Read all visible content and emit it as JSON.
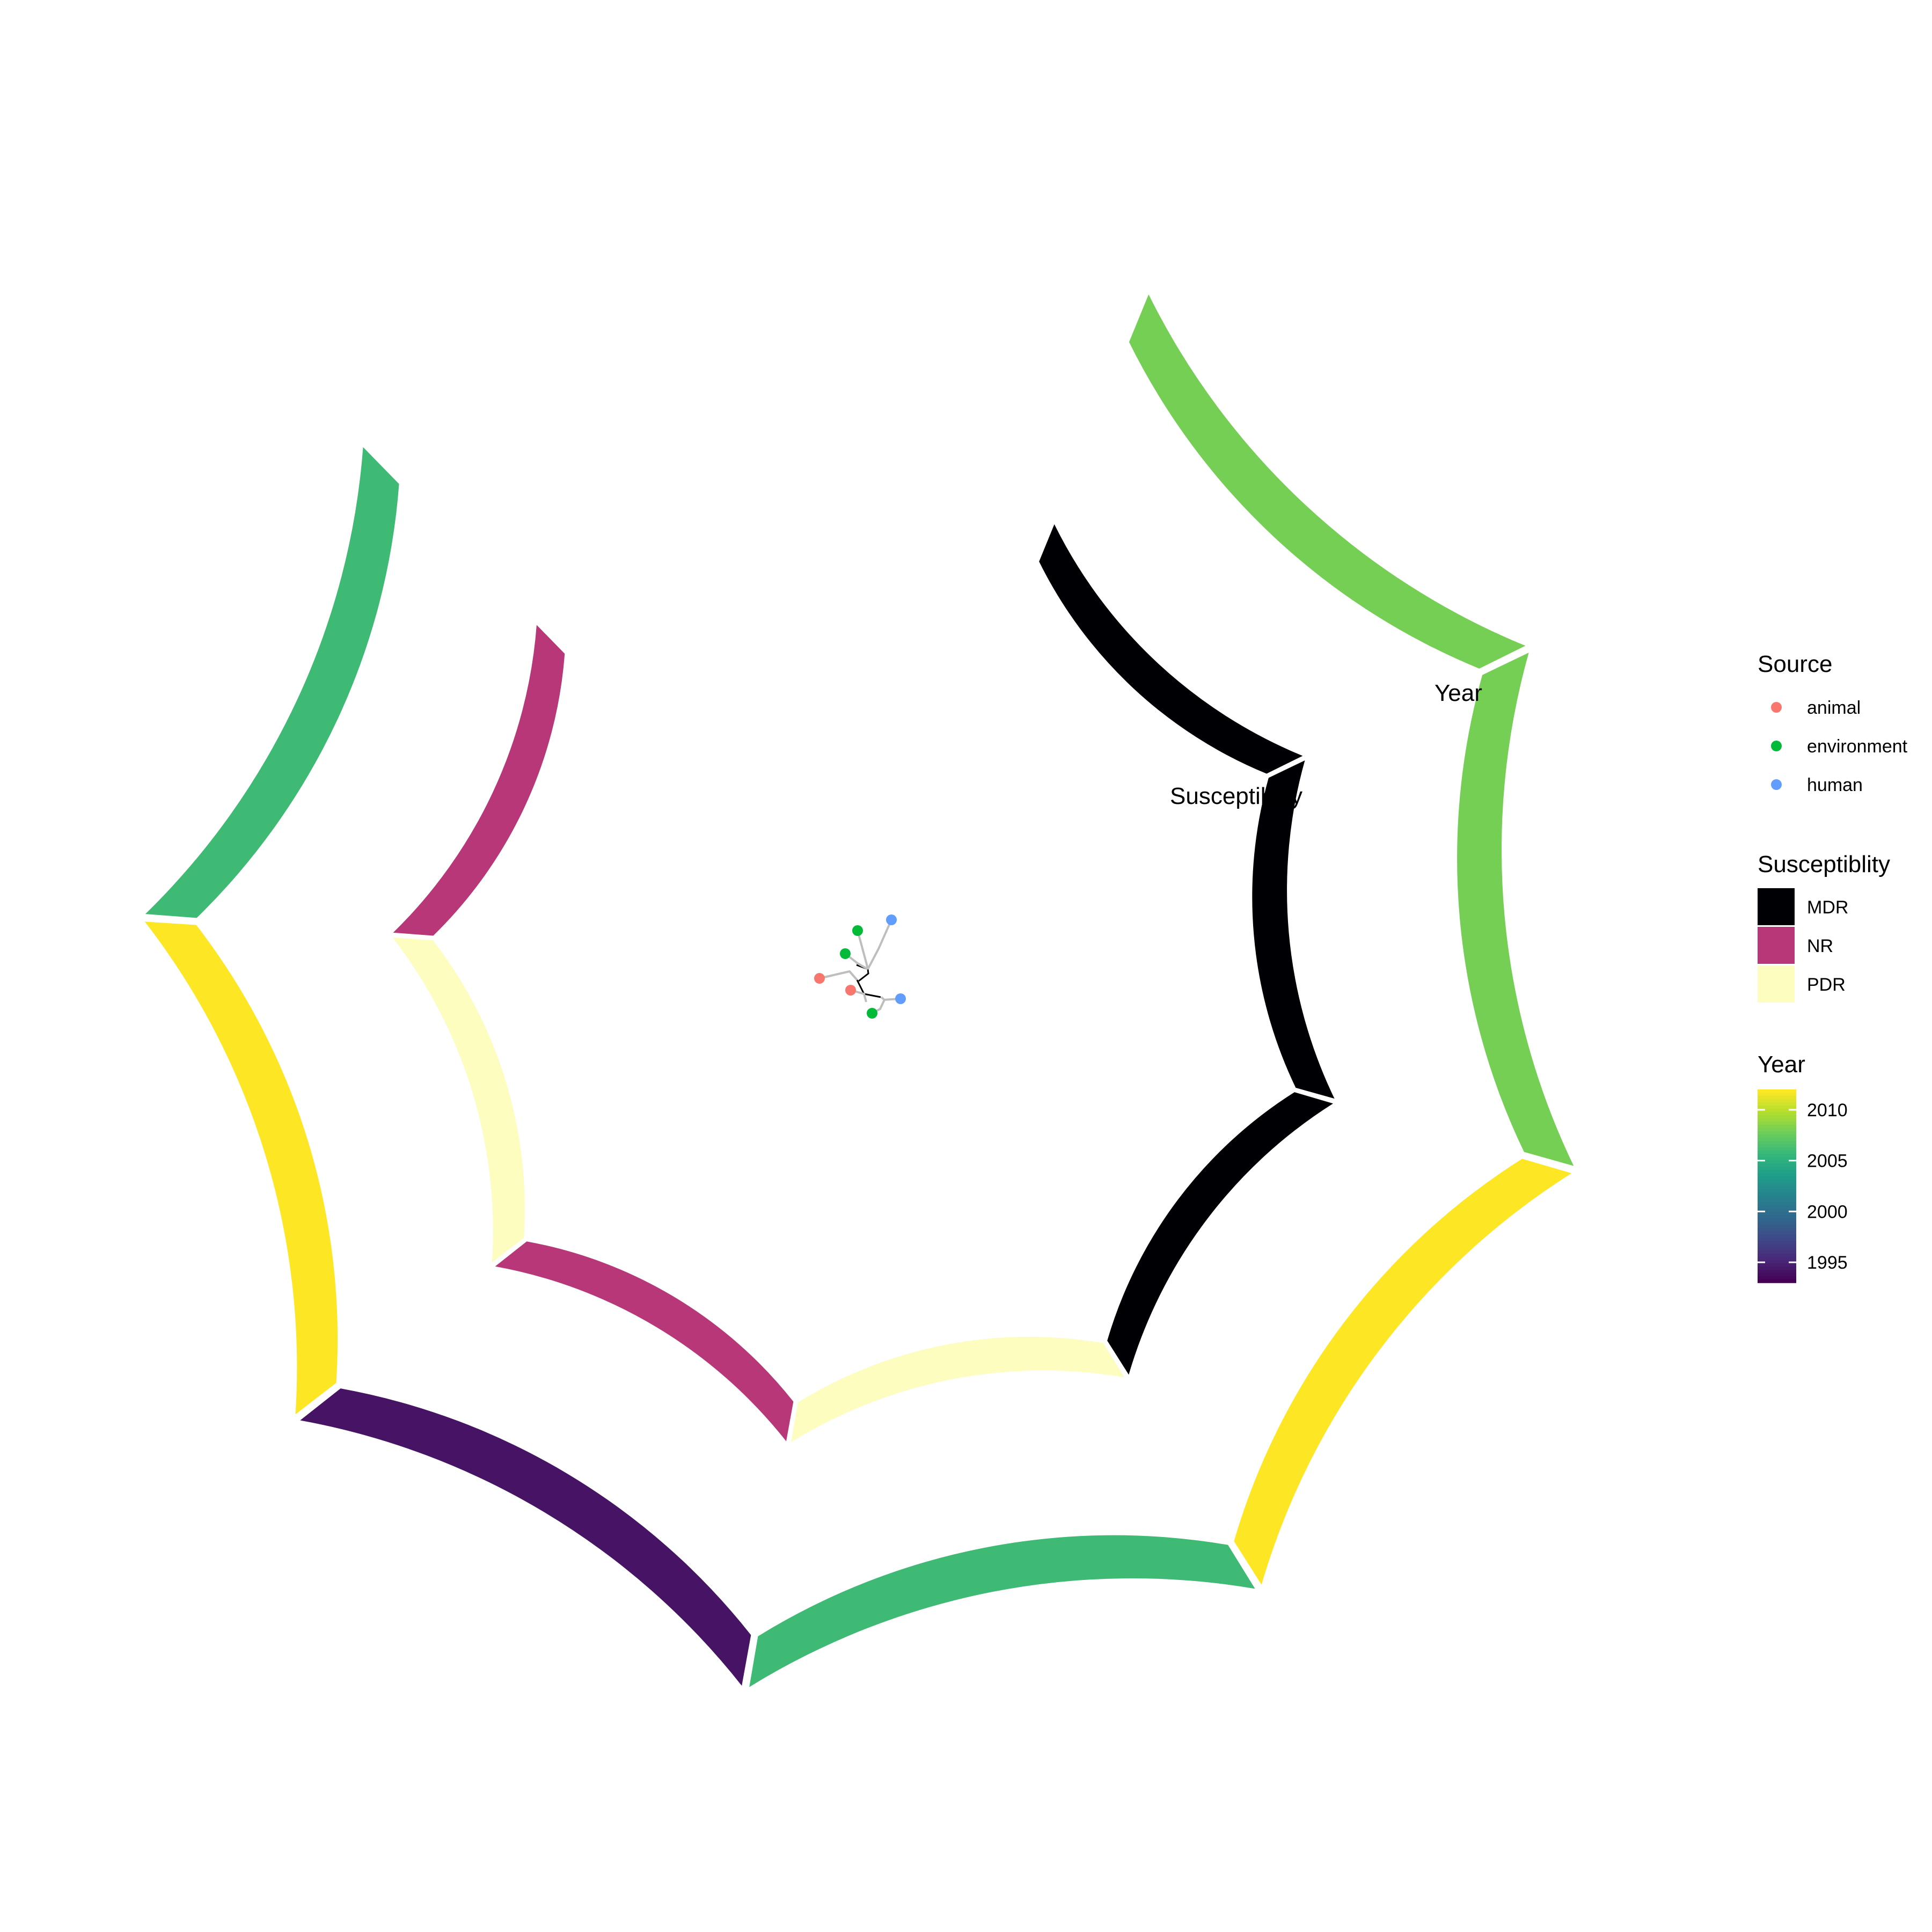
{
  "chart_data": {
    "type": "circular-tree-with-annotation-rings",
    "title": "",
    "tree": {
      "tips": [
        {
          "source": "animal",
          "branch": [
            [
              1527,
              1823
            ],
            [
              1583,
              1810
            ],
            [
              1597,
              1826
            ]
          ]
        },
        {
          "source": "animal",
          "branch": [
            [
              1585,
              1845
            ],
            [
              1610,
              1852
            ],
            [
              1614,
              1867
            ]
          ]
        },
        {
          "source": "environment",
          "branch": [
            [
              1598,
              1734
            ],
            [
              1615,
              1797
            ],
            [
              1617,
              1806
            ]
          ]
        },
        {
          "source": "environment",
          "branch": [
            [
              1575,
              1777
            ],
            [
              1598,
              1795
            ],
            [
              1617,
              1806
            ]
          ]
        },
        {
          "source": "environment",
          "branch": [
            [
              1625,
              1888
            ],
            [
              1640,
              1880
            ],
            [
              1648,
              1863
            ]
          ]
        },
        {
          "source": "human",
          "branch": [
            [
              1661,
              1714
            ],
            [
              1637,
              1768
            ],
            [
              1617,
              1806
            ]
          ]
        },
        {
          "source": "human",
          "branch": [
            [
              1678,
              1861
            ],
            [
              1648,
              1863
            ],
            [
              1642,
              1858
            ]
          ]
        }
      ],
      "internal_edges": [
        [
          [
            1596,
            1798
          ],
          [
            1617,
            1806
          ]
        ],
        [
          [
            1597,
            1826
          ],
          [
            1610,
            1852
          ],
          [
            1641,
            1858
          ]
        ],
        [
          [
            1617,
            1806
          ],
          [
            1618,
            1814
          ],
          [
            1600,
            1828
          ]
        ]
      ]
    },
    "rings": [
      {
        "name": "Susceptiblity",
        "segments": [
          {
            "value": "NR"
          },
          {
            "value": "PDR"
          },
          {
            "value": "NR"
          },
          {
            "value": "PDR"
          },
          {
            "value": "MDR"
          },
          {
            "value": "MDR"
          },
          {
            "value": "MDR"
          }
        ]
      },
      {
        "name": "Year",
        "segments": [
          {
            "year": 2006
          },
          {
            "year": 2012
          },
          {
            "year": 1994
          },
          {
            "year": 2006
          },
          {
            "year": 2012
          },
          {
            "year": 2008
          },
          {
            "year": 2008
          }
        ]
      }
    ],
    "legends": {
      "source": {
        "title": "Source",
        "items": [
          {
            "label": "animal",
            "color": "#F8766D"
          },
          {
            "label": "environment",
            "color": "#00BA38"
          },
          {
            "label": "human",
            "color": "#619CFF"
          }
        ]
      },
      "susceptibility": {
        "title": "Susceptiblity",
        "items": [
          {
            "label": "MDR",
            "color": "#000004"
          },
          {
            "label": "NR",
            "color": "#B73779"
          },
          {
            "label": "PDR",
            "color": "#FCFDBF"
          }
        ]
      },
      "year": {
        "title": "Year",
        "range": [
          1993,
          2012
        ],
        "ticks": [
          {
            "value": 2010,
            "label": "2010"
          },
          {
            "value": 2005,
            "label": "2005"
          },
          {
            "value": 2000,
            "label": "2000"
          },
          {
            "value": 1995,
            "label": "1995"
          }
        ],
        "colormap": "viridis"
      }
    }
  }
}
